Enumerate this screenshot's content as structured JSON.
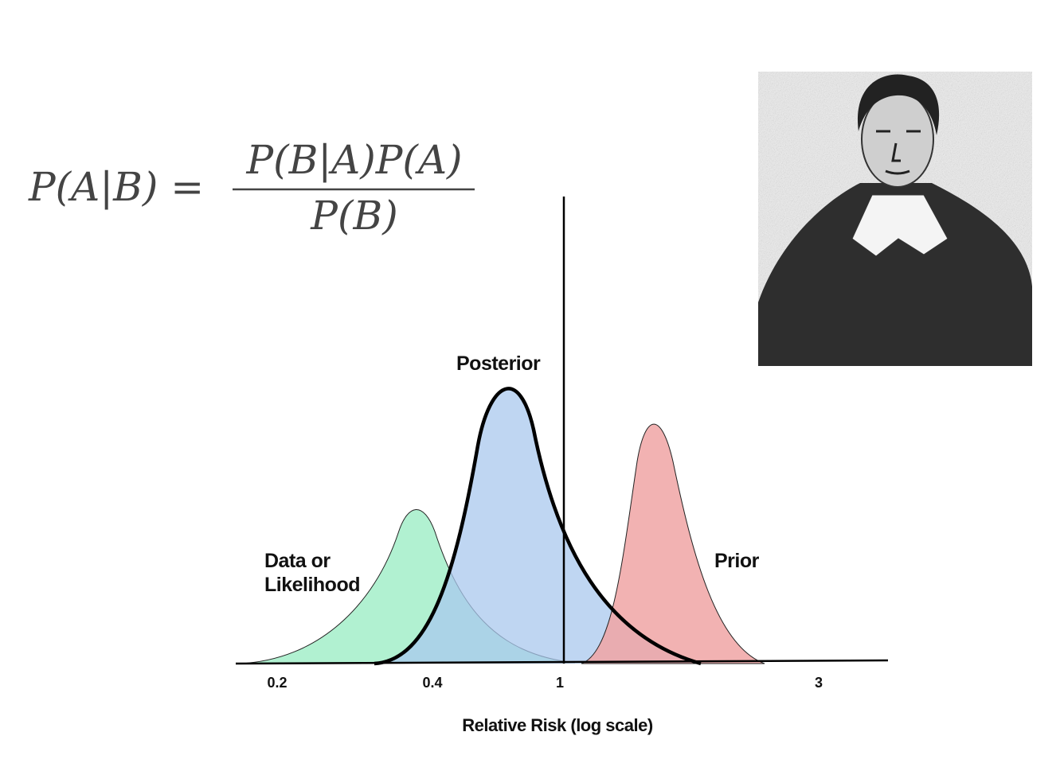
{
  "equation": {
    "lhs": "P(A|B) =",
    "numerator": "P(B|A)P(A)",
    "denominator": "P(B)"
  },
  "chart": {
    "posterior_label": "Posterior",
    "likelihood_label": [
      "Data or",
      "Likelihood"
    ],
    "prior_label": "Prior",
    "x_ticks": [
      "0.2",
      "0.4",
      "1",
      "3"
    ],
    "x_axis_label": "Relative Risk (log scale)"
  }
}
